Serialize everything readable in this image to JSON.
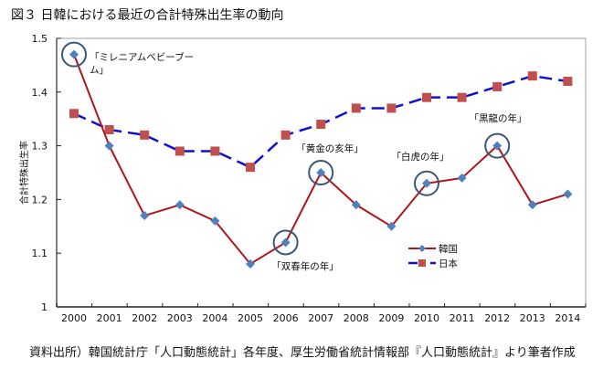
{
  "title": "図３ 日韓における最近の合計特殊出生率の動向",
  "source": "資料出所）韓国統計庁「人口動態統計」各年度、厚生労働省統計情報部『人口動態統計』より筆者作成",
  "colors": {
    "korea_line": "#B0161B",
    "korea_marker": "#4F81BD",
    "japan_line": "#1010D0",
    "japan_marker": "#C0504D",
    "circle": "#3B5877",
    "axis": "#808080"
  },
  "chart_data": {
    "type": "line",
    "title": "図３ 日韓における最近の合計特殊出生率の動向",
    "xlabel": "",
    "ylabel": "合計特殊出生率",
    "ylim": [
      1,
      1.5
    ],
    "yticks": [
      "1",
      "1.1",
      "1.2",
      "1.3",
      "1.4",
      "1.5"
    ],
    "categories": [
      "2000",
      "2001",
      "2002",
      "2003",
      "2004",
      "2005",
      "2006",
      "2007",
      "2008",
      "2009",
      "2010",
      "2011",
      "2012",
      "2013",
      "2014"
    ],
    "series": [
      {
        "name": "韓国",
        "values": [
          1.47,
          1.3,
          1.17,
          1.19,
          1.16,
          1.08,
          1.12,
          1.25,
          1.19,
          1.15,
          1.23,
          1.24,
          1.3,
          1.19,
          1.21
        ]
      },
      {
        "name": "日本",
        "values": [
          1.36,
          1.33,
          1.32,
          1.29,
          1.29,
          1.26,
          1.32,
          1.34,
          1.37,
          1.37,
          1.39,
          1.39,
          1.41,
          1.43,
          1.42
        ]
      }
    ],
    "legend_position": "lower-right",
    "annotations": [
      {
        "text": "「ミレニアムベビーブー",
        "text2": "ム」",
        "year": "2000",
        "circled": true
      },
      {
        "text": "「双春年の年」",
        "year": "2006",
        "circled": true
      },
      {
        "text": "「黄金の亥年」",
        "year": "2007",
        "circled": true
      },
      {
        "text": "「白虎の年」",
        "year": "2010",
        "circled": true
      },
      {
        "text": "「黒龍の年」",
        "year": "2012",
        "circled": true
      }
    ],
    "grid": false
  }
}
